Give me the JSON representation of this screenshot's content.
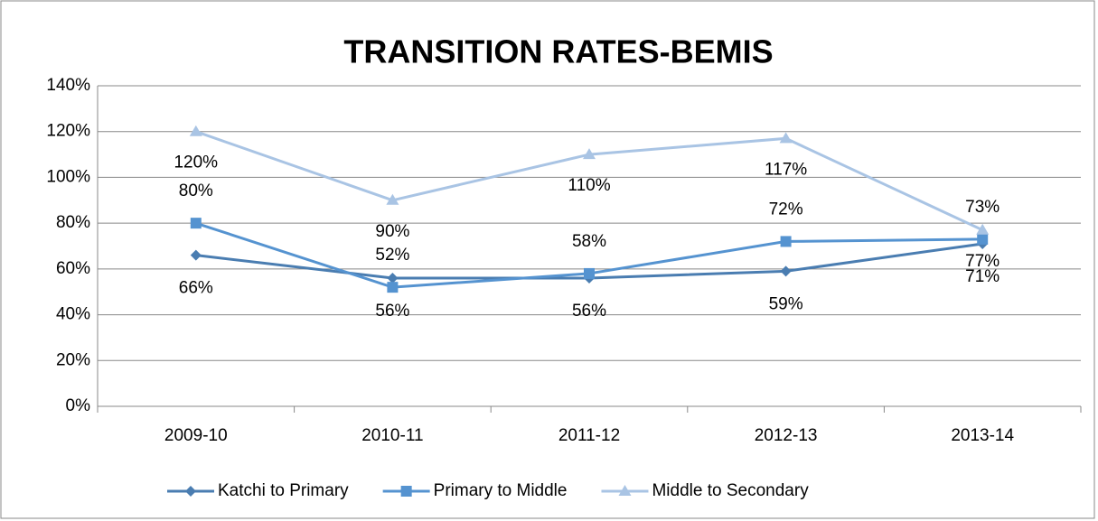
{
  "chart_data": {
    "type": "line",
    "title": "TRANSITION RATES-BEMIS",
    "categories": [
      "2009-10",
      "2010-11",
      "2011-12",
      "2012-13",
      "2013-14"
    ],
    "series": [
      {
        "name": "Katchi to Primary",
        "color": "#4a7db1",
        "marker": "diamond",
        "values": [
          66,
          56,
          56,
          59,
          71
        ],
        "value_labels": [
          "66%",
          "56%",
          "56%",
          "59%",
          "71%"
        ]
      },
      {
        "name": "Primary to Middle",
        "color": "#5593d0",
        "marker": "square",
        "values": [
          80,
          52,
          58,
          72,
          73
        ],
        "value_labels": [
          "80%",
          "52%",
          "58%",
          "72%",
          "73%"
        ]
      },
      {
        "name": "Middle to Secondary",
        "color": "#a9c4e4",
        "marker": "triangle",
        "values": [
          120,
          90,
          110,
          117,
          77
        ],
        "value_labels": [
          "120%",
          "90%",
          "110%",
          "117%",
          "77%"
        ]
      }
    ],
    "ylim": [
      0,
      140
    ],
    "yticks": [
      {
        "value": 0,
        "label": "0%"
      },
      {
        "value": 20,
        "label": "20%"
      },
      {
        "value": 40,
        "label": "40%"
      },
      {
        "value": 60,
        "label": "60%"
      },
      {
        "value": 80,
        "label": "80%"
      },
      {
        "value": 100,
        "label": "100%"
      },
      {
        "value": 120,
        "label": "120%"
      },
      {
        "value": 140,
        "label": "140%"
      }
    ],
    "grid": true,
    "legend": "bottom"
  }
}
